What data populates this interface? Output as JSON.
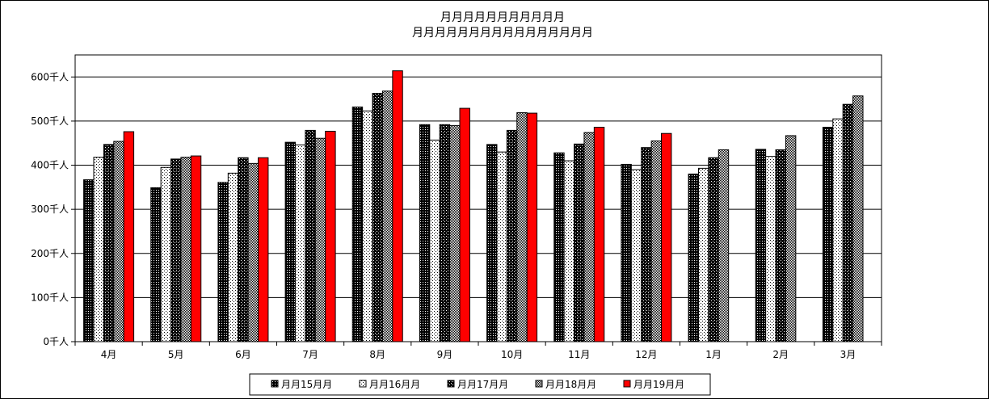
{
  "chart_data": {
    "type": "bar",
    "title_lines": [
      "月月月月月月月月月月月",
      "月月月月月月月月月月月月月月月月"
    ],
    "categories": [
      "4月",
      "5月",
      "6月",
      "7月",
      "8月",
      "9月",
      "10月",
      "11月",
      "12月",
      "1月",
      "2月",
      "3月"
    ],
    "ylim": [
      0,
      650
    ],
    "yticks": [
      0,
      100,
      200,
      300,
      400,
      500,
      600
    ],
    "ytick_labels": [
      "0千人",
      "100千人",
      "200千人",
      "300千人",
      "400千人",
      "500千人",
      "600千人"
    ],
    "grid": true,
    "legend_position": "bottom",
    "series": [
      {
        "name": "月月15月月",
        "pattern": "dense-dots",
        "values": [
          367,
          349,
          361,
          452,
          532,
          492,
          447,
          428,
          402,
          380,
          436,
          486
        ]
      },
      {
        "name": "月月16月月",
        "pattern": "sparse-dots",
        "values": [
          418,
          395,
          382,
          446,
          523,
          457,
          430,
          410,
          390,
          393,
          420,
          505
        ]
      },
      {
        "name": "月月17月月",
        "pattern": "checker",
        "values": [
          447,
          414,
          417,
          479,
          563,
          492,
          479,
          448,
          440,
          417,
          435,
          538
        ]
      },
      {
        "name": "月月18月月",
        "pattern": "fine-checker",
        "values": [
          454,
          418,
          404,
          461,
          568,
          490,
          519,
          474,
          455,
          435,
          467,
          557
        ]
      },
      {
        "name": "月月19月月",
        "pattern": "solid-red",
        "color": "#ff0000",
        "values": [
          476,
          421,
          417,
          477,
          614,
          529,
          518,
          486,
          472,
          null,
          null,
          null
        ]
      }
    ]
  }
}
